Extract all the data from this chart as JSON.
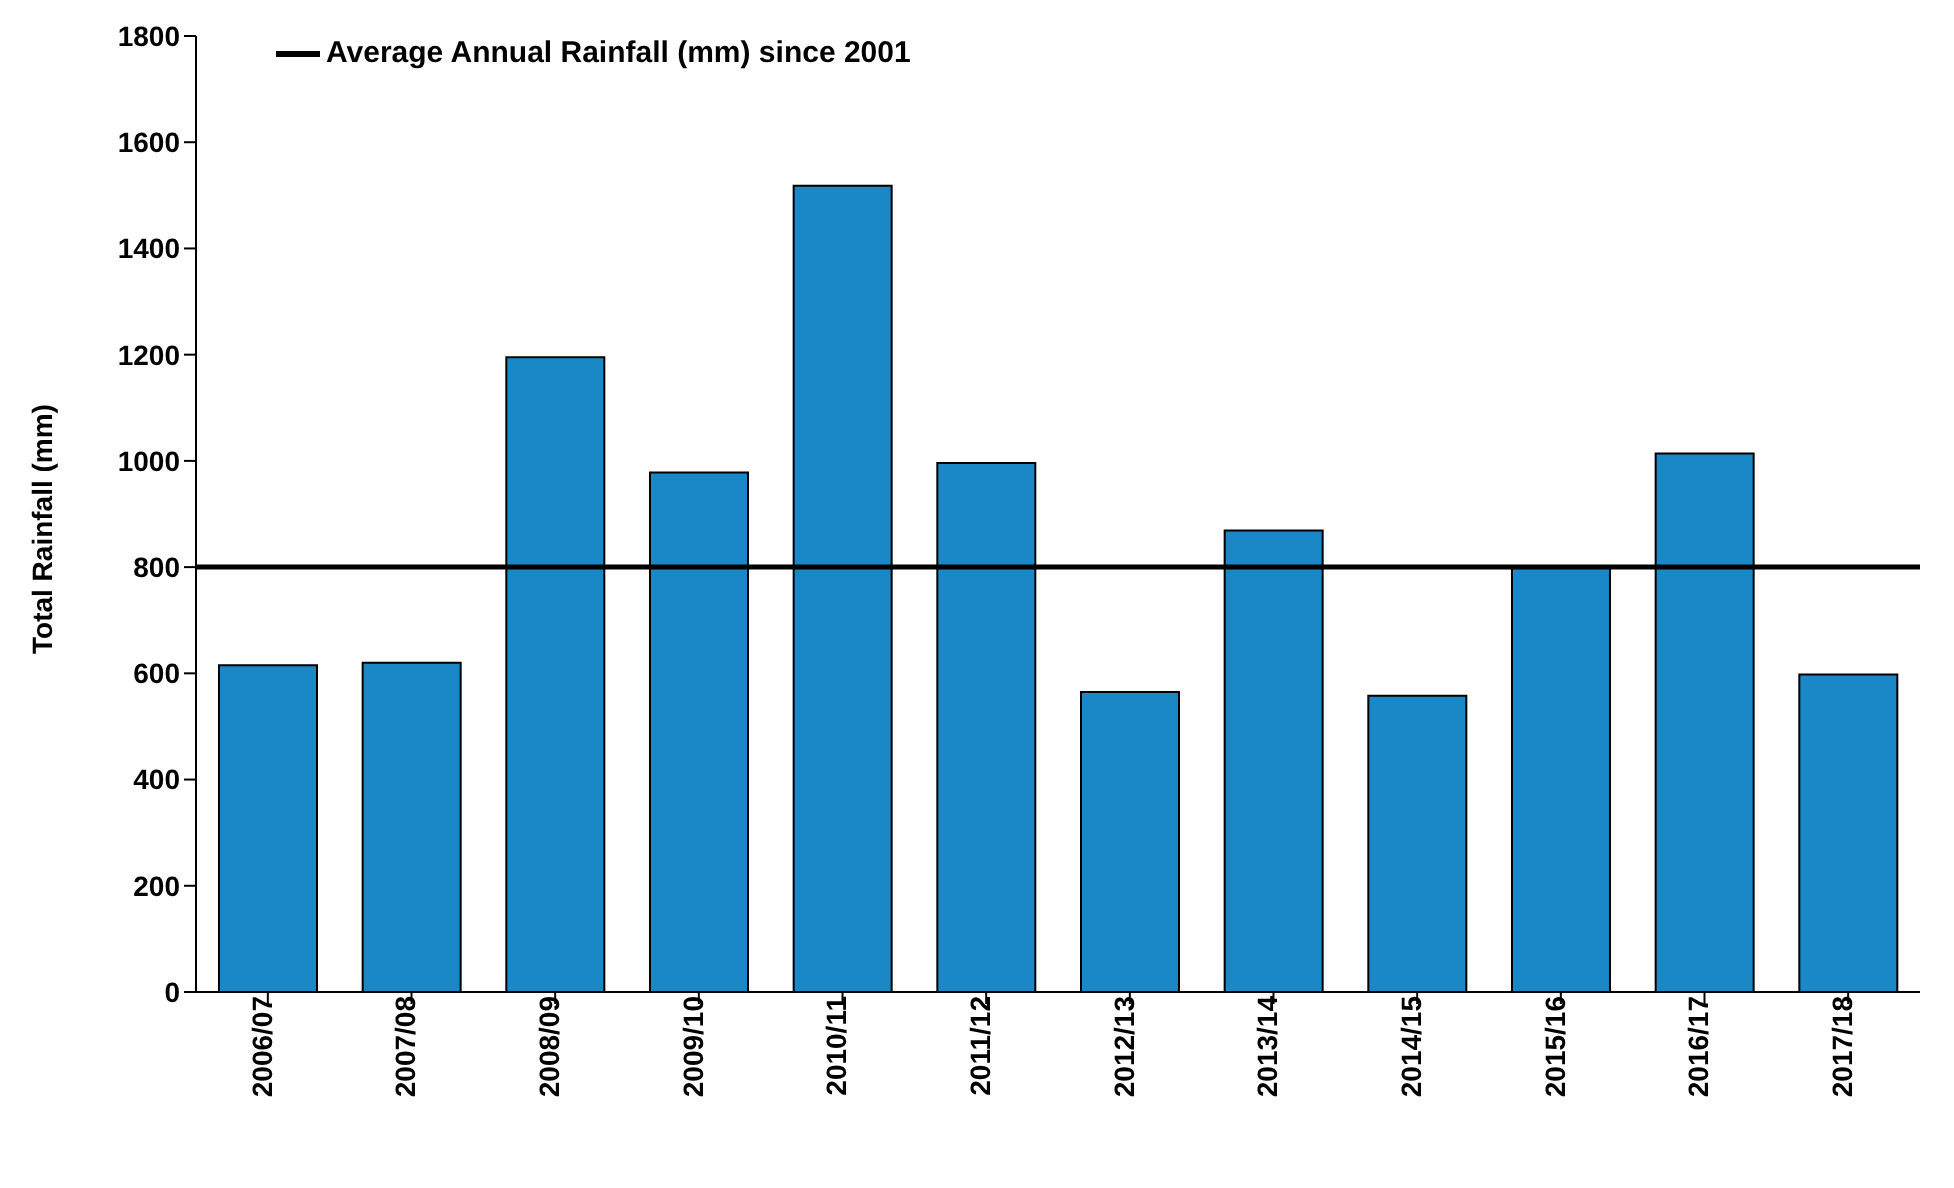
{
  "chart_data": {
    "type": "bar",
    "ylabel": "Total Rainfall (mm)",
    "categories": [
      "2006/07",
      "2007/08",
      "2008/09",
      "2009/10",
      "2010/11",
      "2011/12",
      "2012/13",
      "2013/14",
      "2014/15",
      "2015/16",
      "2016/17",
      "2017/18"
    ],
    "values": [
      615,
      620,
      1195,
      978,
      1518,
      996,
      565,
      869,
      558,
      800,
      1014,
      598
    ],
    "color": "#1a87c6",
    "ylim": [
      0,
      1800
    ],
    "yticks": [
      0,
      200,
      400,
      600,
      800,
      1000,
      1200,
      1400,
      1600,
      1800
    ],
    "ref_lines": [
      {
        "axis": "y",
        "value": 800,
        "label": "Average Annual Rainfall (mm) since 2001",
        "color": "#000000",
        "line_style": "solid"
      }
    ],
    "legend": "top left"
  }
}
